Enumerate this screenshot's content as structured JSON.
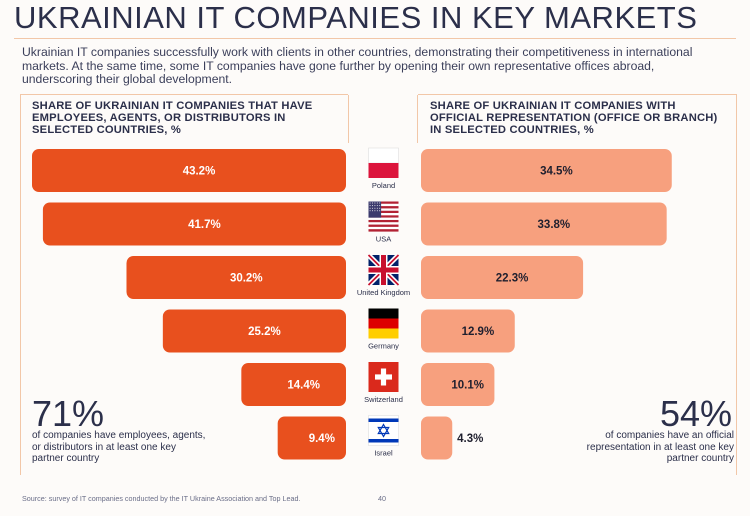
{
  "title": "UKRAINIAN IT COMPANIES IN KEY MARKETS",
  "intro": "Ukrainian IT companies successfully work with clients in other countries, demonstrating their competitiveness in international markets. At the same time, some IT companies have gone further by opening their own representative offices abroad, underscoring their global development.",
  "left_panel": {
    "title": "SHARE OF UKRAINIAN IT COMPANIES THAT HAVE EMPLOYEES, AGENTS, OR DISTRIBUTORS IN SELECTED COUNTRIES, %",
    "stat_value": "71%",
    "stat_text": "of companies have employees, agents, or distributors in at least one key partner country"
  },
  "right_panel": {
    "title": "SHARE OF UKRAINIAN IT COMPANIES WITH OFFICIAL REPRESENTATION (OFFICE OR BRANCH) IN SELECTED COUNTRIES, %",
    "stat_value": "54%",
    "stat_text": "of companies have an official representation in at least one key partner country"
  },
  "source": "Source: survey of IT companies conducted by the IT Ukraine Association and Top Lead.",
  "page_number": "40",
  "colors": {
    "left_bar": "#e8501e",
    "right_bar": "#f7a07e",
    "title_text": "#2b2f4a",
    "rule": "#f2c7a8"
  },
  "chart_data": [
    {
      "type": "bar",
      "orientation": "horizontal",
      "categories": [
        "Poland",
        "USA",
        "United Kingdom",
        "Germany",
        "Switzerland",
        "Israel"
      ],
      "values": [
        43.2,
        41.7,
        30.2,
        25.2,
        14.4,
        9.4
      ],
      "value_labels": [
        "43.2%",
        "41.7%",
        "30.2%",
        "25.2%",
        "14.4%",
        "9.4%"
      ],
      "title": "SHARE OF UKRAINIAN IT COMPANIES THAT HAVE EMPLOYEES, AGENTS, OR DISTRIBUTORS IN SELECTED COUNTRIES, %",
      "direction": "right-to-left",
      "xlim": [
        0,
        43.2
      ]
    },
    {
      "type": "bar",
      "orientation": "horizontal",
      "categories": [
        "Poland",
        "USA",
        "United Kingdom",
        "Germany",
        "Switzerland",
        "Israel"
      ],
      "values": [
        34.5,
        33.8,
        22.3,
        12.9,
        10.1,
        4.3
      ],
      "value_labels": [
        "34.5%",
        "33.8%",
        "22.3%",
        "12.9%",
        "10.1%",
        "4.3%"
      ],
      "title": "SHARE OF UKRAINIAN IT COMPANIES WITH OFFICIAL REPRESENTATION (OFFICE OR BRANCH) IN SELECTED COUNTRIES, %",
      "direction": "left-to-right",
      "xlim": [
        0,
        43.2
      ]
    }
  ],
  "flags": [
    "poland-flag-icon",
    "usa-flag-icon",
    "uk-flag-icon",
    "germany-flag-icon",
    "switzerland-flag-icon",
    "israel-flag-icon"
  ]
}
